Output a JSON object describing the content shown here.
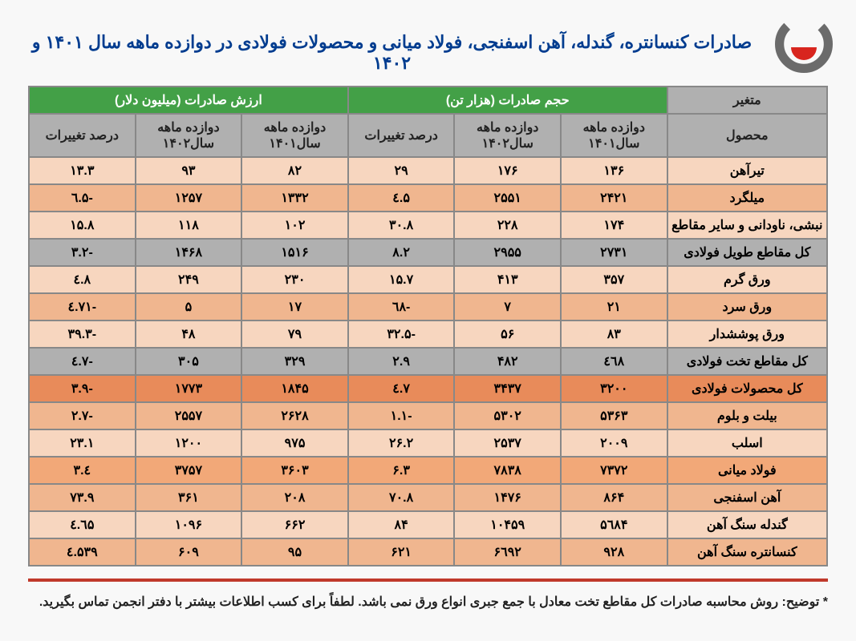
{
  "logo": {
    "fill1": "#6b6b6b",
    "fill2": "#d8251e"
  },
  "title": "صادرات کنسانتره، گندله، آهن اسفنجی، فولاد میانی و محصولات فولادی در دوازده ماهه سال ۱۴۰۱ و ۱۴۰۲",
  "headers": {
    "variable": "متغیر",
    "product": "محصول",
    "volume_group": "حجم صادرات (هزار تن)",
    "value_group": "ارزش صادرات (میلیون دلار)",
    "y1401": "دوازده ماهه سال۱۴۰۱",
    "y1402": "دوازده ماهه سال۱۴۰۲",
    "pct": "درصد تغییرات"
  },
  "rows": [
    {
      "cls": "r-light",
      "product": "تیرآهن",
      "v1401": "۱۳۶",
      "v1402": "۱۷۶",
      "vpct": "۲۹",
      "a1401": "۸۲",
      "a1402": "۹۳",
      "apct": "۱۳.۳"
    },
    {
      "cls": "r-mid",
      "product": "میلگرد",
      "v1401": "۲۴۲۱",
      "v1402": "۲۵۵۱",
      "vpct": "۵.٤",
      "a1401": "۱۳۳۲",
      "a1402": "۱۲۵۷",
      "apct": "-۵.٦"
    },
    {
      "cls": "r-light",
      "product": "نبشی، ناودانی و سایر مقاطع",
      "v1401": "۱۷۴",
      "v1402": "۲۲۸",
      "vpct": "۳۰.۸",
      "a1401": "۱۰۲",
      "a1402": "۱۱۸",
      "apct": "۱۵.۸"
    },
    {
      "cls": "r-gray",
      "product": "کل مقاطع طویل فولادی",
      "v1401": "۲۷۳۱",
      "v1402": "۲۹۵۵",
      "vpct": "۸.۲",
      "a1401": "۱۵۱۶",
      "a1402": "۱۴۶۸",
      "apct": "-۳.۲"
    },
    {
      "cls": "r-light",
      "product": "ورق گرم",
      "v1401": "۳۵۷",
      "v1402": "۴۱۳",
      "vpct": "۱۵.۷",
      "a1401": "۲۳۰",
      "a1402": "۲۴۹",
      "apct": "۸.٤"
    },
    {
      "cls": "r-mid",
      "product": "ورق سرد",
      "v1401": "۲۱",
      "v1402": "۷",
      "vpct": "-٦۸",
      "a1401": "۱۷",
      "a1402": "۵",
      "apct": "-۷۱.٤"
    },
    {
      "cls": "r-light",
      "product": "ورق پوششدار",
      "v1401": "۸۳",
      "v1402": "۵۶",
      "vpct": "-۳۲.۵",
      "a1401": "۷۹",
      "a1402": "۴۸",
      "apct": "-۳۹.۳"
    },
    {
      "cls": "r-gray",
      "product": "کل مقاطع تخت فولادی",
      "v1401": "٤٦۸",
      "v1402": "۴۸۲",
      "vpct": "۲.۹",
      "a1401": "۳۲۹",
      "a1402": "۳۰۵",
      "apct": "-۷.٤"
    },
    {
      "cls": "r-orange",
      "product": "کل محصولات فولادی",
      "v1401": "۳۲۰۰",
      "v1402": "۳۴۳۷",
      "vpct": "۷.٤",
      "a1401": "۱۸۴۵",
      "a1402": "۱۷۷۳",
      "apct": "-۳.۹"
    },
    {
      "cls": "r-mid",
      "product": "بیلت و بلوم",
      "v1401": "۵۳۶۳",
      "v1402": "۵۳۰۲",
      "vpct": "-۱.۱",
      "a1401": "۲۶۲۸",
      "a1402": "۲۵۵۷",
      "apct": "-۲.۷"
    },
    {
      "cls": "r-light",
      "product": "اسلب",
      "v1401": "۲۰۰۹",
      "v1402": "۲۵۳۷",
      "vpct": "۲۶.۲",
      "a1401": "۹۷۵",
      "a1402": "۱۲۰۰",
      "apct": "۲۳.۱"
    },
    {
      "cls": "r-porange",
      "product": "فولاد  میانی",
      "v1401": "۷۳۷۲",
      "v1402": "۷۸۳۸",
      "vpct": "۶.۳",
      "a1401": "۳۶۰۳",
      "a1402": "۳۷۵۷",
      "apct": "٤.۳"
    },
    {
      "cls": "r-mid",
      "product": "آهن اسفنجی",
      "v1401": "۸۶۴",
      "v1402": "۱۴۷۶",
      "vpct": "۷۰.۸",
      "a1401": "۲۰۸",
      "a1402": "۳۶۱",
      "apct": "۷۳.۹"
    },
    {
      "cls": "r-light",
      "product": "گندله سنگ آهن",
      "v1401": "۵٦۸۴",
      "v1402": "۱۰۴۵۹",
      "vpct": "۸۴",
      "a1401": "۶۶۲",
      "a1402": "۱۰۹۶",
      "apct": "٦۵.٤"
    },
    {
      "cls": "r-mid",
      "product": "کنسانتره سنگ آهن",
      "v1401": "۹۲۸",
      "v1402": "۶٦۹۲",
      "vpct": "۶۲۱",
      "a1401": "۹۵",
      "a1402": "۶۰۹",
      "apct": "۵۳۹.٤"
    }
  ],
  "footnote": "* توضیح: روش محاسبه صادرات کل مقاطع تخت معادل با جمع جبری انواع ورق نمی باشد. لطفاً برای کسب اطلاعات بیشتر با دفتر انجمن تماس بگیرید."
}
